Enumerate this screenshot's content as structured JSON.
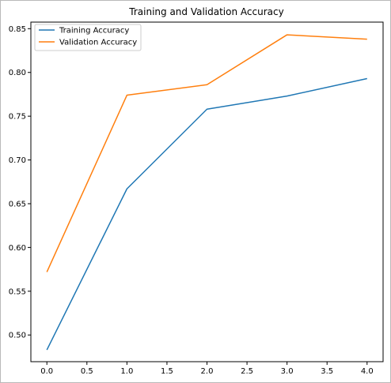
{
  "chart_data": {
    "type": "line",
    "title": "Training and Validation Accuracy",
    "xlabel": "",
    "ylabel": "",
    "xlim": [
      -0.2,
      4.2
    ],
    "ylim": [
      0.4695,
      0.8575
    ],
    "x_ticks": [
      "0.0",
      "0.5",
      "1.0",
      "1.5",
      "2.0",
      "2.5",
      "3.0",
      "3.5",
      "4.0"
    ],
    "y_ticks": [
      "0.50",
      "0.55",
      "0.60",
      "0.65",
      "0.70",
      "0.75",
      "0.80",
      "0.85"
    ],
    "grid": false,
    "legend_position": "top-left",
    "x": [
      0,
      1,
      2,
      3,
      4
    ],
    "series": [
      {
        "name": "Training Accuracy",
        "color": "#1f77b4",
        "values": [
          0.483,
          0.667,
          0.758,
          0.773,
          0.793
        ]
      },
      {
        "name": "Validation Accuracy",
        "color": "#ff7f0e",
        "values": [
          0.572,
          0.774,
          0.786,
          0.843,
          0.838
        ]
      }
    ]
  }
}
